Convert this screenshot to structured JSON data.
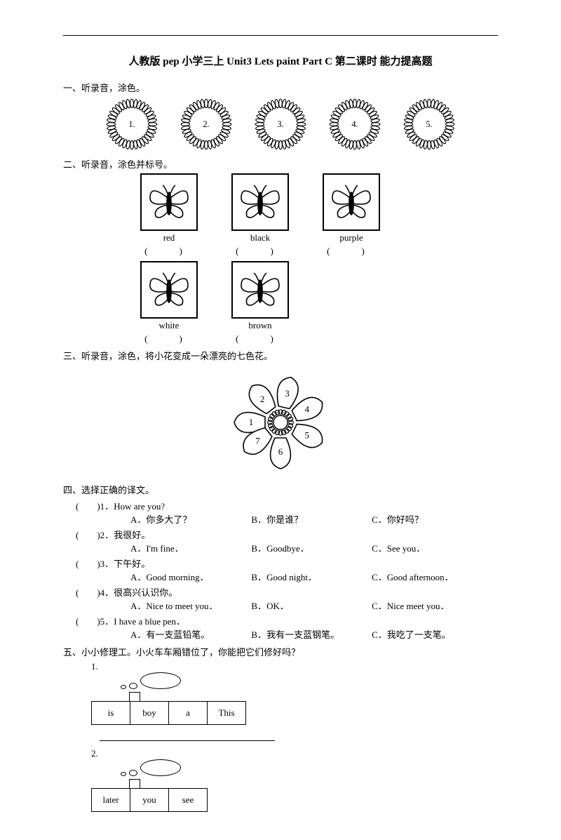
{
  "title": "人教版 pep 小学三上 Unit3 Lets paint Part C 第二课时 能力提高题",
  "section1": {
    "title": "一、听录音，涂色。",
    "numbers": [
      "1.",
      "2.",
      "3.",
      "4.",
      "5."
    ]
  },
  "section2": {
    "title": "二、听录音，涂色并标号。",
    "row1": [
      {
        "label": "red"
      },
      {
        "label": "black"
      },
      {
        "label": "purple"
      }
    ],
    "row2": [
      {
        "label": "white"
      },
      {
        "label": "brown"
      }
    ],
    "paren": "(　)"
  },
  "section3": {
    "title": "三、听录音，涂色，将小花变成一朵漂亮的七色花。",
    "petals": [
      "1",
      "2",
      "3",
      "4",
      "5",
      "6",
      "7"
    ]
  },
  "section4": {
    "title": "四、选择正确的译文。",
    "items": [
      {
        "n": "1",
        "q": "How are you?",
        "a": "你多大了？",
        "b": "你是谁？",
        "c": "你好吗？"
      },
      {
        "n": "2",
        "q": "我很好。",
        "a": "I'm fine．",
        "b": "Goodbye．",
        "c": "See you．"
      },
      {
        "n": "3",
        "q": "下午好。",
        "a": "Good morning．",
        "b": "Good night．",
        "c": "Good afternoon．"
      },
      {
        "n": "4",
        "q": "很高兴认识你。",
        "a": "Nice to meet you．",
        "b": "OK．",
        "c": "Nice meet you．"
      },
      {
        "n": "5",
        "q": "I have a blue pen．",
        "a": "有一支蓝铅笔。",
        "b": "我有一支蓝钢笔。",
        "c": "我吃了一支笔。"
      }
    ]
  },
  "section5": {
    "title": "五、小小修理工。小火车车厢错位了，你能把它们修好吗？",
    "trains": [
      {
        "n": "1.",
        "cars": [
          "is",
          "boy",
          "a",
          "This"
        ]
      },
      {
        "n": "2.",
        "cars": [
          "later",
          "you",
          "see"
        ]
      }
    ]
  },
  "colors": {
    "stroke": "#000000",
    "bg": "#ffffff"
  }
}
